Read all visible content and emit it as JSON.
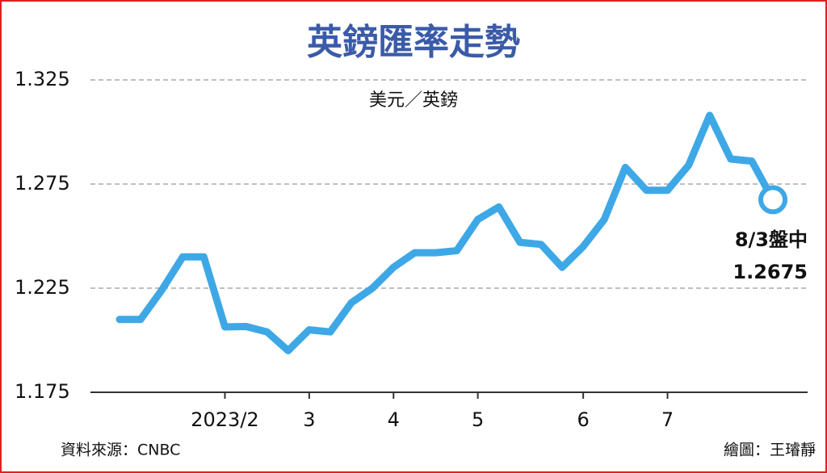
{
  "chart_data": {
    "type": "line",
    "title": "英鎊匯率走勢",
    "subtitle": "美元／英鎊",
    "source": "資料來源：CNBC",
    "credit": "繪圖：王璿靜",
    "categories": [
      null,
      null,
      null,
      null,
      null,
      "2023/2",
      null,
      null,
      null,
      "3",
      null,
      null,
      null,
      "4",
      null,
      null,
      null,
      "5",
      null,
      null,
      null,
      null,
      "6",
      null,
      null,
      null,
      "7",
      null,
      null,
      null,
      null,
      null
    ],
    "series": [
      {
        "name": "美元／英鎊",
        "color": "#3ea8e6",
        "values": [
          1.21,
          1.21,
          1.224,
          1.24,
          1.24,
          1.2064,
          1.2066,
          1.204,
          1.195,
          1.205,
          1.204,
          1.218,
          1.225,
          1.235,
          1.242,
          1.242,
          1.243,
          1.258,
          1.264,
          1.247,
          1.246,
          1.235,
          1.245,
          1.258,
          1.283,
          1.272,
          1.272,
          1.284,
          1.308,
          1.287,
          1.286,
          1.2675
        ]
      }
    ],
    "annotation": {
      "date": "8/3盤中",
      "value": 1.2675
    },
    "ylim": [
      1.175,
      1.325
    ],
    "yticks": [
      1.175,
      1.225,
      1.275,
      1.325
    ],
    "grid": true
  }
}
